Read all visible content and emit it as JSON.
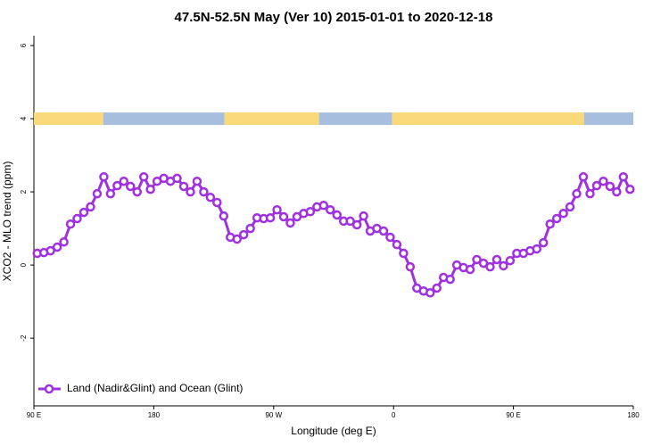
{
  "chart_data": {
    "type": "line",
    "title": "47.5N-52.5N May (Ver 10)   2015-01-01 to 2020-12-18",
    "xlabel": "Longitude (deg E)",
    "ylabel": "XCO2 - MLO trend (ppm)",
    "xlim": [
      90,
      540
    ],
    "ylim": [
      -3.85,
      6.27
    ],
    "xticks": [
      {
        "value": 90,
        "label": "90 E"
      },
      {
        "value": 180,
        "label": "180"
      },
      {
        "value": 270,
        "label": "90 W"
      },
      {
        "value": 360,
        "label": "0"
      },
      {
        "value": 450,
        "label": "90 E"
      },
      {
        "value": 540,
        "label": "180"
      }
    ],
    "yticks": [
      -2,
      0,
      2,
      4,
      6
    ],
    "legend": "bottom-left",
    "surface_band": {
      "y": 4,
      "segments": [
        {
          "start": 90,
          "end": 142,
          "color": "#f9d97a"
        },
        {
          "start": 142,
          "end": 233,
          "color": "#a8bede"
        },
        {
          "start": 233,
          "end": 304,
          "color": "#f9d97a"
        },
        {
          "start": 304,
          "end": 359,
          "color": "#a8bede"
        },
        {
          "start": 359,
          "end": 503,
          "color": "#f9d97a"
        },
        {
          "start": 503,
          "end": 540,
          "color": "#a8bede"
        }
      ]
    },
    "x": [
      92.5,
      97.5,
      102.5,
      107.5,
      112.5,
      117.5,
      122.5,
      127.5,
      132.5,
      137.5,
      142.5,
      147.5,
      152.5,
      157.5,
      162.5,
      167.5,
      172.5,
      177.5,
      182.5,
      187.5,
      192.5,
      197.5,
      202.5,
      207.5,
      212.5,
      217.5,
      222.5,
      227.5,
      232.5,
      237.5,
      242.5,
      247.5,
      252.5,
      257.5,
      262.5,
      267.5,
      272.5,
      277.5,
      282.5,
      287.5,
      292.5,
      297.5,
      302.5,
      307.5,
      312.5,
      317.5,
      322.5,
      327.5,
      332.5,
      337.5,
      342.5,
      347.5,
      352.5,
      357.5,
      362.5,
      367.5,
      372.5,
      377.5,
      382.5,
      387.5,
      392.5,
      397.5,
      402.5,
      407.5,
      412.5,
      417.5,
      422.5,
      427.5,
      432.5,
      437.5,
      442.5,
      447.5,
      452.5,
      457.5,
      462.5,
      467.5,
      472.5,
      477.5,
      482.5,
      487.5,
      492.5,
      497.5,
      502.5,
      507.5,
      512.5,
      517.5,
      522.5,
      527.5,
      532.5,
      537.5
    ],
    "series": [
      {
        "name": "Land (Nadir&Glint) and Ocean (Glint)",
        "color": "#a030e0",
        "values": [
          0.32,
          0.34,
          0.39,
          0.49,
          0.63,
          1.12,
          1.27,
          1.44,
          1.59,
          1.95,
          2.41,
          1.95,
          2.17,
          2.29,
          2.15,
          2.0,
          2.41,
          2.07,
          2.29,
          2.37,
          2.29,
          2.37,
          2.15,
          2.0,
          2.29,
          2.0,
          1.85,
          1.71,
          1.34,
          0.76,
          0.71,
          0.83,
          1.0,
          1.29,
          1.27,
          1.29,
          1.51,
          1.32,
          1.15,
          1.32,
          1.41,
          1.46,
          1.59,
          1.63,
          1.51,
          1.37,
          1.2,
          1.2,
          1.1,
          1.34,
          0.93,
          1.0,
          0.93,
          0.76,
          0.56,
          0.32,
          -0.05,
          -0.63,
          -0.71,
          -0.76,
          -0.63,
          -0.34,
          -0.39,
          0,
          -0.07,
          -0.12,
          0.15,
          0.05,
          -0.05,
          0.15,
          -0.02,
          0.12,
          0.32,
          0.32,
          0.39,
          0.44,
          0.61,
          1.12,
          1.27,
          1.41,
          1.59,
          1.95,
          2.41,
          1.95,
          2.17,
          2.29,
          2.15,
          2.0,
          2.41,
          2.07
        ]
      }
    ]
  }
}
